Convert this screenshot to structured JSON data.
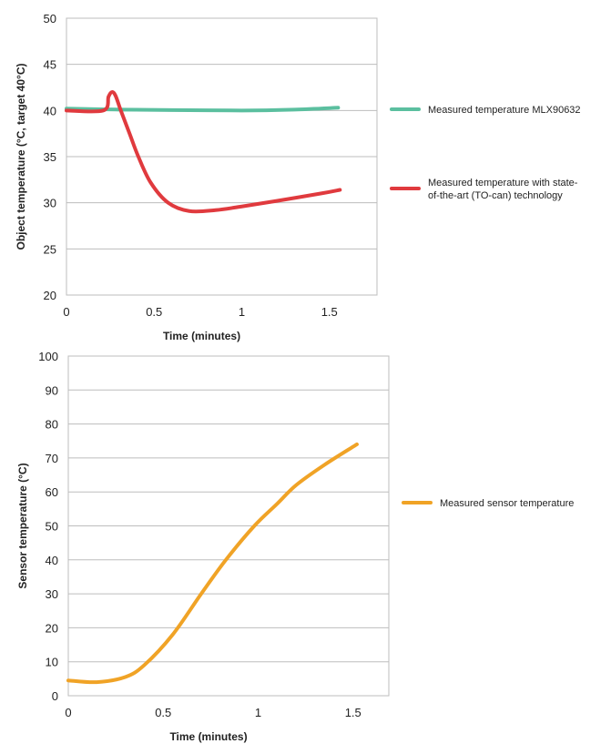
{
  "chart_data": [
    {
      "type": "line",
      "xlabel": "Time (minutes)",
      "ylabel": "Object temperature (°C, target 40°C)",
      "xlim": [
        0,
        1.78
      ],
      "ylim": [
        20,
        50
      ],
      "xticks": [
        "0",
        "0.5",
        "1",
        "1.5"
      ],
      "yticks": [
        "20",
        "25",
        "30",
        "35",
        "40",
        "45",
        "50"
      ],
      "grid": true,
      "legend": "right",
      "series": [
        {
          "name": "Measured temperature MLX90632",
          "color": "#5bbf9f",
          "x": [
            0,
            0.3,
            0.6,
            1.0,
            1.3,
            1.55
          ],
          "y": [
            40.2,
            40.1,
            40.05,
            40.0,
            40.1,
            40.3
          ]
        },
        {
          "name": "Measured temperature with state-of-the-art (TO-can) technology",
          "color": "#e03a3e",
          "x": [
            0,
            0.21,
            0.24,
            0.26,
            0.28,
            0.31,
            0.36,
            0.41,
            0.48,
            0.58,
            0.7,
            0.85,
            1.0,
            1.2,
            1.45,
            1.56
          ],
          "y": [
            40,
            40,
            41.5,
            42,
            41.6,
            40,
            37.5,
            35,
            32.2,
            30,
            29.1,
            29.2,
            29.6,
            30.2,
            31.0,
            31.4
          ]
        }
      ]
    },
    {
      "type": "line",
      "xlabel": "Time (minutes)",
      "ylabel": "Sensor temperature (°C)",
      "xlim": [
        0,
        1.69
      ],
      "ylim": [
        0,
        100
      ],
      "xticks": [
        "0",
        "0.5",
        "1",
        "1.5"
      ],
      "yticks": [
        "0",
        "10",
        "20",
        "30",
        "40",
        "50",
        "60",
        "70",
        "80",
        "90",
        "100"
      ],
      "grid": true,
      "legend": "right",
      "series": [
        {
          "name": "Measured sensor temperature",
          "color": "#f0a326",
          "x": [
            0,
            0.15,
            0.3,
            0.4,
            0.55,
            0.7,
            0.83,
            0.98,
            1.1,
            1.2,
            1.35,
            1.52
          ],
          "y": [
            4.5,
            4,
            5.5,
            9,
            18,
            30,
            40,
            50,
            56.5,
            62,
            68,
            74
          ]
        }
      ]
    }
  ]
}
